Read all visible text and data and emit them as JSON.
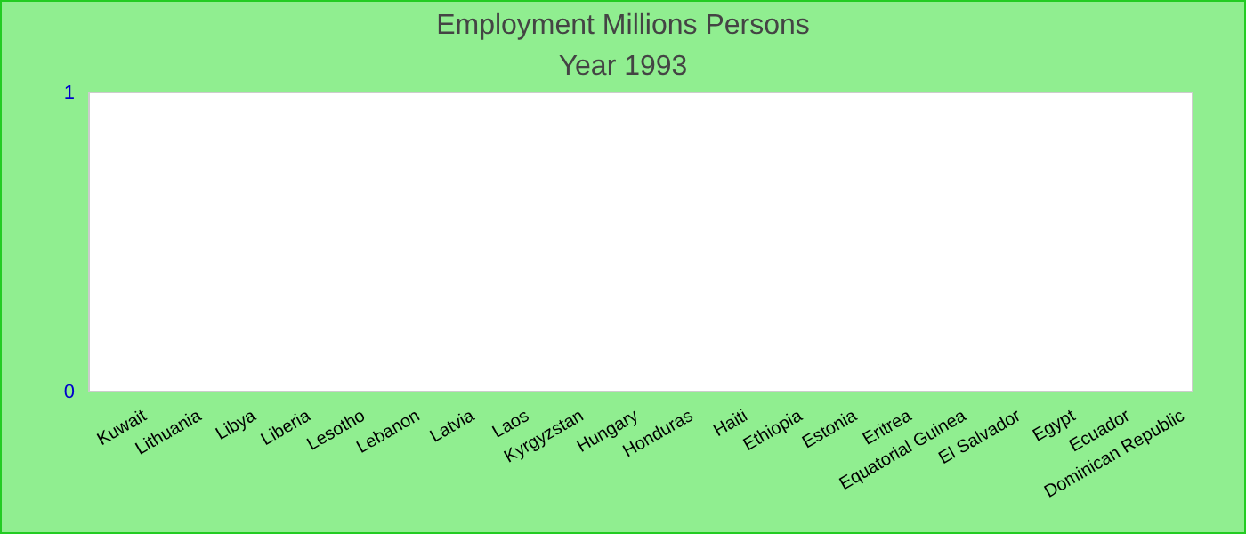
{
  "chart_data": {
    "type": "bar",
    "title": "Employment Millions Persons",
    "subtitle": "Year 1993",
    "categories": [
      "Kuwait",
      "Lithuania",
      "Libya",
      "Liberia",
      "Lesotho",
      "Lebanon",
      "Latvia",
      "Laos",
      "Kyrgyzstan",
      "Hungary",
      "Honduras",
      "Haiti",
      "Ethiopia",
      "Estonia",
      "Eritrea",
      "Equatorial Guinea",
      "El Salvador",
      "Egypt",
      "Ecuador",
      "Dominican Republic"
    ],
    "values": [
      0,
      0,
      0,
      0,
      0,
      0,
      0,
      0,
      0,
      0,
      0,
      0,
      0,
      0,
      0,
      0,
      0,
      0,
      0,
      0
    ],
    "ylim": [
      0,
      1
    ],
    "yticks": [
      0,
      1
    ],
    "grid": false
  }
}
